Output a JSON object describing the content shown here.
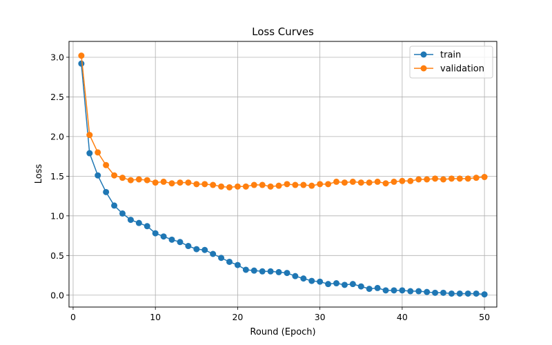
{
  "chart_data": {
    "type": "line",
    "title": "Loss Curves",
    "xlabel": "Round (Epoch)",
    "ylabel": "Loss",
    "xlim": [
      -0.5,
      51.5
    ],
    "ylim": [
      -0.15,
      3.2
    ],
    "x_ticks": [
      0,
      10,
      20,
      30,
      40,
      50
    ],
    "y_ticks": [
      0.0,
      0.5,
      1.0,
      1.5,
      2.0,
      2.5,
      3.0
    ],
    "x_tick_labels": [
      "0",
      "10",
      "20",
      "30",
      "40",
      "50"
    ],
    "y_tick_labels": [
      "0.0",
      "0.5",
      "1.0",
      "1.5",
      "2.0",
      "2.5",
      "3.0"
    ],
    "grid": true,
    "legend_position": "top-right",
    "x": [
      1,
      2,
      3,
      4,
      5,
      6,
      7,
      8,
      9,
      10,
      11,
      12,
      13,
      14,
      15,
      16,
      17,
      18,
      19,
      20,
      21,
      22,
      23,
      24,
      25,
      26,
      27,
      28,
      29,
      30,
      31,
      32,
      33,
      34,
      35,
      36,
      37,
      38,
      39,
      40,
      41,
      42,
      43,
      44,
      45,
      46,
      47,
      48,
      49,
      50
    ],
    "series": [
      {
        "name": "train",
        "color": "#1f77b4",
        "values": [
          2.92,
          1.79,
          1.51,
          1.3,
          1.13,
          1.03,
          0.95,
          0.91,
          0.87,
          0.78,
          0.74,
          0.7,
          0.67,
          0.62,
          0.58,
          0.57,
          0.52,
          0.47,
          0.42,
          0.38,
          0.32,
          0.31,
          0.3,
          0.3,
          0.29,
          0.28,
          0.24,
          0.21,
          0.18,
          0.17,
          0.14,
          0.15,
          0.13,
          0.14,
          0.11,
          0.08,
          0.09,
          0.06,
          0.06,
          0.06,
          0.05,
          0.05,
          0.04,
          0.03,
          0.03,
          0.02,
          0.02,
          0.02,
          0.02,
          0.01
        ]
      },
      {
        "name": "validation",
        "color": "#ff7f0e",
        "values": [
          3.02,
          2.02,
          1.8,
          1.64,
          1.51,
          1.48,
          1.45,
          1.46,
          1.45,
          1.42,
          1.43,
          1.41,
          1.42,
          1.42,
          1.4,
          1.4,
          1.39,
          1.37,
          1.36,
          1.37,
          1.37,
          1.39,
          1.39,
          1.37,
          1.38,
          1.4,
          1.39,
          1.39,
          1.38,
          1.4,
          1.4,
          1.43,
          1.42,
          1.43,
          1.42,
          1.42,
          1.43,
          1.41,
          1.43,
          1.44,
          1.44,
          1.46,
          1.46,
          1.47,
          1.46,
          1.47,
          1.47,
          1.47,
          1.48,
          1.49
        ]
      }
    ]
  }
}
